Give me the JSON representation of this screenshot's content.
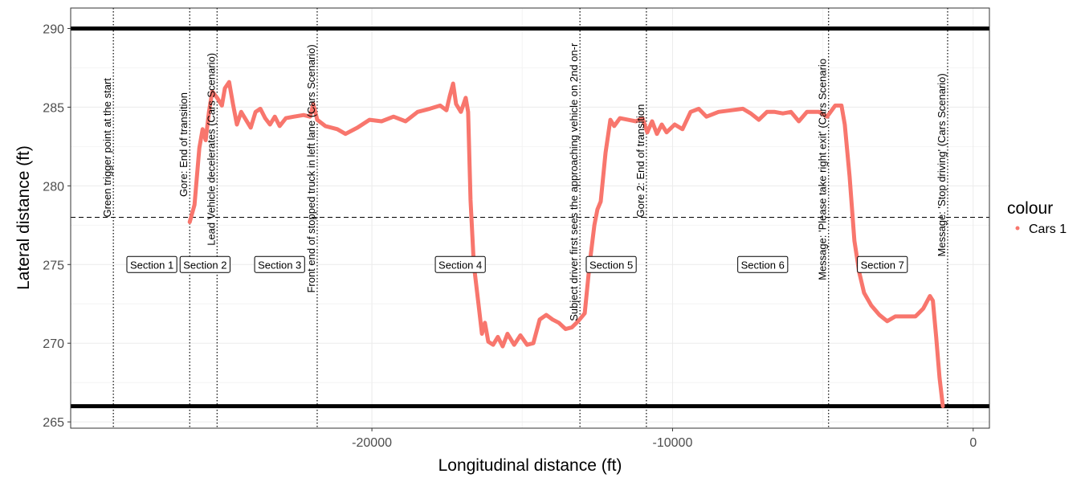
{
  "chart_data": {
    "type": "line",
    "x_label": "Longitudinal distance (ft)",
    "y_label": "Lateral distance (ft)",
    "xlim": [
      -30020,
      540
    ],
    "ylim": [
      264.6,
      291.3
    ],
    "xticks": [
      -20000,
      -10000,
      0
    ],
    "yticks": [
      265,
      270,
      275,
      280,
      285,
      290
    ],
    "grid": true,
    "legend_title": "colour",
    "legend_position": "right",
    "series": [
      {
        "name": "Cars 1",
        "color": "#f8766d",
        "x": [
          -26060,
          -25900,
          -25740,
          -25630,
          -25530,
          -25420,
          -25310,
          -25150,
          -24990,
          -24890,
          -24750,
          -24620,
          -24490,
          -24350,
          -24190,
          -24030,
          -23870,
          -23710,
          -23550,
          -23390,
          -23230,
          -23070,
          -22860,
          -22590,
          -22270,
          -22060,
          -21950,
          -21820,
          -21550,
          -21150,
          -20880,
          -20480,
          -20080,
          -19680,
          -19280,
          -18880,
          -18480,
          -18080,
          -17730,
          -17520,
          -17410,
          -17300,
          -17200,
          -17040,
          -16880,
          -16800,
          -16720,
          -16610,
          -16450,
          -16340,
          -16240,
          -16130,
          -15970,
          -15810,
          -15650,
          -15490,
          -15270,
          -15060,
          -14840,
          -14630,
          -14420,
          -14200,
          -13990,
          -13780,
          -13560,
          -13350,
          -13140,
          -12920,
          -12760,
          -12600,
          -12500,
          -12390,
          -12230,
          -12070,
          -11940,
          -11750,
          -11480,
          -11220,
          -11000,
          -10840,
          -10680,
          -10520,
          -10360,
          -10200,
          -9930,
          -9670,
          -9400,
          -9130,
          -8870,
          -8470,
          -8060,
          -7660,
          -7400,
          -7130,
          -6860,
          -6600,
          -6330,
          -6060,
          -5800,
          -5530,
          -5130,
          -4860,
          -4590,
          -4380,
          -4270,
          -4110,
          -3950,
          -3790,
          -3630,
          -3390,
          -3120,
          -2860,
          -2590,
          -2240,
          -1920,
          -1660,
          -1440,
          -1340,
          -1230,
          -1120,
          -1010
        ],
        "values": [
          277.7,
          278.8,
          282.4,
          283.6,
          282.9,
          284.7,
          286.0,
          285.6,
          285.1,
          286.2,
          286.6,
          285.2,
          283.9,
          284.7,
          284.2,
          283.7,
          284.7,
          284.9,
          284.3,
          283.9,
          284.4,
          283.8,
          284.3,
          284.4,
          284.5,
          284.4,
          285.2,
          284.2,
          283.8,
          283.6,
          283.3,
          283.7,
          284.2,
          284.1,
          284.4,
          284.1,
          284.7,
          284.9,
          285.1,
          284.8,
          285.7,
          286.5,
          285.2,
          284.7,
          285.6,
          284.7,
          279.1,
          275.0,
          272.4,
          270.6,
          271.3,
          270.1,
          269.9,
          270.4,
          269.8,
          270.6,
          269.9,
          270.5,
          269.9,
          270.0,
          271.5,
          271.8,
          271.5,
          271.3,
          270.9,
          271.0,
          271.4,
          271.9,
          275.0,
          277.5,
          278.5,
          279.0,
          282.1,
          284.2,
          283.8,
          284.3,
          284.2,
          284.1,
          284.3,
          283.4,
          284.1,
          283.3,
          283.9,
          283.4,
          283.9,
          283.6,
          284.7,
          284.9,
          284.4,
          284.7,
          284.8,
          284.9,
          284.6,
          284.2,
          284.7,
          284.7,
          284.6,
          284.7,
          284.1,
          284.7,
          284.7,
          284.4,
          285.1,
          285.1,
          283.9,
          280.6,
          276.5,
          274.5,
          273.2,
          272.4,
          271.8,
          271.4,
          271.7,
          271.7,
          271.7,
          272.2,
          273.0,
          272.7,
          270.4,
          267.8,
          266.0
        ]
      }
    ],
    "reference_lines": [
      {
        "y": 290,
        "style": "solid"
      },
      {
        "y": 266,
        "style": "solid"
      },
      {
        "y": 278,
        "style": "dashed"
      }
    ],
    "annotations": [
      {
        "x": -28600,
        "y": 278.0,
        "label": "Green trigger point at the start"
      },
      {
        "x": -26060,
        "y": 279.3,
        "label": "Gore: End of transition"
      },
      {
        "x": -25150,
        "y": 276.2,
        "label": "Lead Vehicle decelerates (Cars Scenario)"
      },
      {
        "x": -21820,
        "y": 273.2,
        "label": "Front end of stopped truck in left lane (Cars Scenario)"
      },
      {
        "x": -13080,
        "y": 271.4,
        "label": "Subject driver first sees the approaching vehicle on 2nd on-r"
      },
      {
        "x": -10870,
        "y": 278.0,
        "label": "Gore 2: End of transition"
      },
      {
        "x": -4810,
        "y": 274.0,
        "label": "Message: 'Please take right exit' (Cars Scenario"
      },
      {
        "x": -850,
        "y": 275.5,
        "label": "Message: 'Stop driving' (Cars Scenario)"
      }
    ],
    "section_labels": [
      {
        "x": -27320,
        "y": 275,
        "label": "Section 1"
      },
      {
        "x": -25550,
        "y": 275,
        "label": "Section 2"
      },
      {
        "x": -23070,
        "y": 275,
        "label": "Section 3"
      },
      {
        "x": -17060,
        "y": 275,
        "label": "Section 4"
      },
      {
        "x": -12040,
        "y": 275,
        "label": "Section 5"
      },
      {
        "x": -7000,
        "y": 275,
        "label": "Section 6"
      },
      {
        "x": -3020,
        "y": 275,
        "label": "Section 7"
      }
    ]
  }
}
